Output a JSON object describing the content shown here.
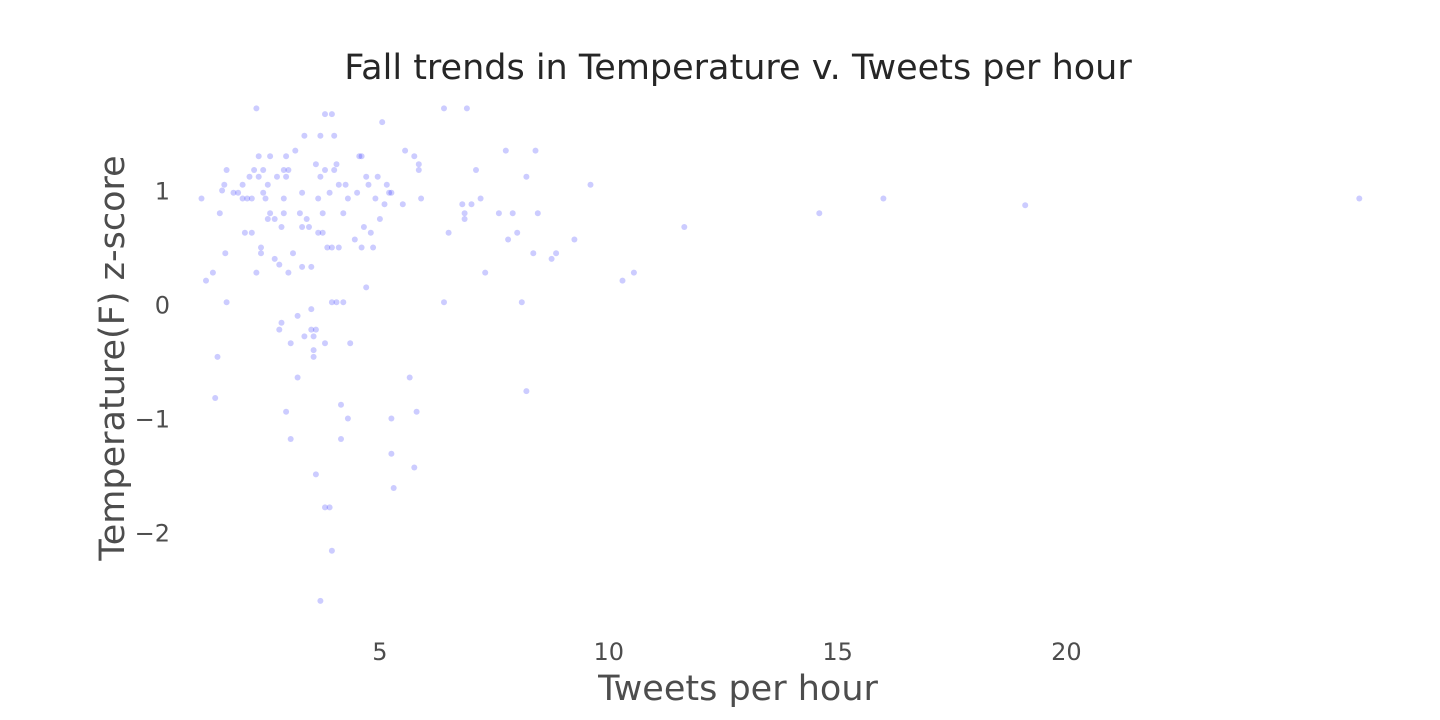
{
  "chart_data": {
    "type": "scatter",
    "title": "Fall trends in Temperature v. Tweets per hour",
    "xlabel": "Tweets per hour",
    "ylabel": "Temperature(F) z-score",
    "xlim": [
      0.5,
      26
    ],
    "ylim": [
      -2.75,
      1.75
    ],
    "xticks": [
      5,
      10,
      15,
      20
    ],
    "yticks": [
      -2,
      -1,
      0,
      1
    ],
    "xtick_labels": [
      "5",
      "10",
      "15",
      "20"
    ],
    "ytick_labels": [
      "−2",
      "−1",
      "0",
      "1"
    ],
    "grid": false,
    "marker_color": "#0000ff",
    "marker_opacity": 0.2,
    "points": [
      {
        "x": 1.1,
        "y": 0.93
      },
      {
        "x": 1.2,
        "y": 0.21
      },
      {
        "x": 1.35,
        "y": 0.28
      },
      {
        "x": 1.4,
        "y": -0.82
      },
      {
        "x": 1.45,
        "y": -0.46
      },
      {
        "x": 1.5,
        "y": 0.8
      },
      {
        "x": 1.55,
        "y": 1.0
      },
      {
        "x": 1.6,
        "y": 1.05
      },
      {
        "x": 1.62,
        "y": 0.45
      },
      {
        "x": 1.65,
        "y": 1.18
      },
      {
        "x": 1.65,
        "y": 0.02
      },
      {
        "x": 1.8,
        "y": 0.98
      },
      {
        "x": 1.9,
        "y": 0.98
      },
      {
        "x": 2.0,
        "y": 0.93
      },
      {
        "x": 2.0,
        "y": 1.05
      },
      {
        "x": 2.05,
        "y": 0.63
      },
      {
        "x": 2.1,
        "y": 0.93
      },
      {
        "x": 2.15,
        "y": 1.12
      },
      {
        "x": 2.2,
        "y": 0.93
      },
      {
        "x": 2.2,
        "y": 0.63
      },
      {
        "x": 2.25,
        "y": 1.18
      },
      {
        "x": 2.3,
        "y": 1.72
      },
      {
        "x": 2.3,
        "y": 0.28
      },
      {
        "x": 2.35,
        "y": 1.12
      },
      {
        "x": 2.35,
        "y": 1.3
      },
      {
        "x": 2.4,
        "y": 0.5
      },
      {
        "x": 2.4,
        "y": 0.45
      },
      {
        "x": 2.45,
        "y": 0.98
      },
      {
        "x": 2.45,
        "y": 1.18
      },
      {
        "x": 2.5,
        "y": 0.93
      },
      {
        "x": 2.55,
        "y": 1.05
      },
      {
        "x": 2.55,
        "y": 0.75
      },
      {
        "x": 2.6,
        "y": 1.3
      },
      {
        "x": 2.6,
        "y": 0.8
      },
      {
        "x": 2.7,
        "y": 0.75
      },
      {
        "x": 2.7,
        "y": 0.4
      },
      {
        "x": 2.75,
        "y": 1.12
      },
      {
        "x": 2.8,
        "y": -0.22
      },
      {
        "x": 2.8,
        "y": 0.35
      },
      {
        "x": 2.85,
        "y": -0.16
      },
      {
        "x": 2.85,
        "y": 0.68
      },
      {
        "x": 2.9,
        "y": 1.18
      },
      {
        "x": 2.9,
        "y": 0.93
      },
      {
        "x": 2.9,
        "y": 0.8
      },
      {
        "x": 2.95,
        "y": 1.3
      },
      {
        "x": 2.95,
        "y": 1.12
      },
      {
        "x": 2.95,
        "y": -0.94
      },
      {
        "x": 3.0,
        "y": 0.28
      },
      {
        "x": 3.0,
        "y": 1.18
      },
      {
        "x": 3.05,
        "y": -0.34
      },
      {
        "x": 3.05,
        "y": -1.18
      },
      {
        "x": 3.1,
        "y": 0.45
      },
      {
        "x": 3.15,
        "y": 1.35
      },
      {
        "x": 3.2,
        "y": -0.1
      },
      {
        "x": 3.2,
        "y": -0.64
      },
      {
        "x": 3.25,
        "y": 0.8
      },
      {
        "x": 3.3,
        "y": 0.98
      },
      {
        "x": 3.3,
        "y": 0.68
      },
      {
        "x": 3.3,
        "y": 0.33
      },
      {
        "x": 3.35,
        "y": -0.28
      },
      {
        "x": 3.35,
        "y": 1.48
      },
      {
        "x": 3.4,
        "y": 0.75
      },
      {
        "x": 3.45,
        "y": 0.68
      },
      {
        "x": 3.5,
        "y": 0.33
      },
      {
        "x": 3.5,
        "y": -0.04
      },
      {
        "x": 3.5,
        "y": -0.22
      },
      {
        "x": 3.55,
        "y": -0.28
      },
      {
        "x": 3.55,
        "y": -0.4
      },
      {
        "x": 3.55,
        "y": -0.46
      },
      {
        "x": 3.6,
        "y": -0.22
      },
      {
        "x": 3.6,
        "y": -1.49
      },
      {
        "x": 3.6,
        "y": 1.23
      },
      {
        "x": 3.65,
        "y": 0.93
      },
      {
        "x": 3.65,
        "y": 0.63
      },
      {
        "x": 3.7,
        "y": 1.12
      },
      {
        "x": 3.7,
        "y": 1.48
      },
      {
        "x": 3.7,
        "y": -2.6
      },
      {
        "x": 3.75,
        "y": 0.63
      },
      {
        "x": 3.75,
        "y": 0.8
      },
      {
        "x": 3.8,
        "y": 1.67
      },
      {
        "x": 3.8,
        "y": 1.18
      },
      {
        "x": 3.8,
        "y": -0.34
      },
      {
        "x": 3.8,
        "y": -1.78
      },
      {
        "x": 3.85,
        "y": 0.5
      },
      {
        "x": 3.9,
        "y": 0.98
      },
      {
        "x": 3.9,
        "y": -1.78
      },
      {
        "x": 3.95,
        "y": 1.67
      },
      {
        "x": 3.95,
        "y": 0.5
      },
      {
        "x": 3.95,
        "y": 0.02
      },
      {
        "x": 3.95,
        "y": -2.16
      },
      {
        "x": 4.0,
        "y": 1.48
      },
      {
        "x": 4.0,
        "y": 1.18
      },
      {
        "x": 4.05,
        "y": 1.23
      },
      {
        "x": 4.05,
        "y": 0.02
      },
      {
        "x": 4.1,
        "y": 1.05
      },
      {
        "x": 4.1,
        "y": 0.5
      },
      {
        "x": 4.15,
        "y": -0.88
      },
      {
        "x": 4.15,
        "y": -1.18
      },
      {
        "x": 4.2,
        "y": 0.02
      },
      {
        "x": 4.2,
        "y": 0.8
      },
      {
        "x": 4.25,
        "y": 1.05
      },
      {
        "x": 4.3,
        "y": 0.93
      },
      {
        "x": 4.3,
        "y": -1.0
      },
      {
        "x": 4.35,
        "y": -0.34
      },
      {
        "x": 4.45,
        "y": 0.57
      },
      {
        "x": 4.5,
        "y": 0.98
      },
      {
        "x": 4.55,
        "y": 1.3
      },
      {
        "x": 4.6,
        "y": 1.3
      },
      {
        "x": 4.6,
        "y": 0.5
      },
      {
        "x": 4.65,
        "y": 0.68
      },
      {
        "x": 4.7,
        "y": 1.12
      },
      {
        "x": 4.7,
        "y": 0.15
      },
      {
        "x": 4.75,
        "y": 1.05
      },
      {
        "x": 4.8,
        "y": 0.63
      },
      {
        "x": 4.85,
        "y": 0.5
      },
      {
        "x": 4.9,
        "y": 0.93
      },
      {
        "x": 4.95,
        "y": 1.12
      },
      {
        "x": 5.0,
        "y": 0.75
      },
      {
        "x": 5.05,
        "y": 1.6
      },
      {
        "x": 5.1,
        "y": 0.88
      },
      {
        "x": 5.15,
        "y": 1.05
      },
      {
        "x": 5.2,
        "y": 0.98
      },
      {
        "x": 5.25,
        "y": 0.98
      },
      {
        "x": 5.25,
        "y": -1.0
      },
      {
        "x": 5.25,
        "y": -1.31
      },
      {
        "x": 5.3,
        "y": -1.61
      },
      {
        "x": 5.5,
        "y": 0.88
      },
      {
        "x": 5.55,
        "y": 1.35
      },
      {
        "x": 5.65,
        "y": -0.64
      },
      {
        "x": 5.75,
        "y": -1.43
      },
      {
        "x": 5.8,
        "y": -0.94
      },
      {
        "x": 5.85,
        "y": 1.18
      },
      {
        "x": 5.85,
        "y": 1.23
      },
      {
        "x": 5.75,
        "y": 1.3
      },
      {
        "x": 5.9,
        "y": 0.93
      },
      {
        "x": 6.4,
        "y": 1.72
      },
      {
        "x": 6.4,
        "y": 0.02
      },
      {
        "x": 6.5,
        "y": 0.63
      },
      {
        "x": 6.8,
        "y": 0.88
      },
      {
        "x": 6.85,
        "y": 0.8
      },
      {
        "x": 6.85,
        "y": 0.75
      },
      {
        "x": 6.9,
        "y": 1.72
      },
      {
        "x": 7.0,
        "y": 0.88
      },
      {
        "x": 7.1,
        "y": 1.18
      },
      {
        "x": 7.2,
        "y": 0.93
      },
      {
        "x": 7.3,
        "y": 0.28
      },
      {
        "x": 7.6,
        "y": 0.8
      },
      {
        "x": 7.75,
        "y": 1.35
      },
      {
        "x": 7.8,
        "y": 0.57
      },
      {
        "x": 7.9,
        "y": 0.8
      },
      {
        "x": 8.0,
        "y": 0.63
      },
      {
        "x": 8.1,
        "y": 0.02
      },
      {
        "x": 8.2,
        "y": 1.12
      },
      {
        "x": 8.2,
        "y": -0.76
      },
      {
        "x": 8.35,
        "y": 0.45
      },
      {
        "x": 8.4,
        "y": 1.35
      },
      {
        "x": 8.45,
        "y": 0.8
      },
      {
        "x": 8.75,
        "y": 0.4
      },
      {
        "x": 8.85,
        "y": 0.45
      },
      {
        "x": 9.25,
        "y": 0.57
      },
      {
        "x": 9.6,
        "y": 1.05
      },
      {
        "x": 10.3,
        "y": 0.21
      },
      {
        "x": 10.55,
        "y": 0.28
      },
      {
        "x": 11.65,
        "y": 0.68
      },
      {
        "x": 14.6,
        "y": 0.8
      },
      {
        "x": 16.0,
        "y": 0.93
      },
      {
        "x": 19.1,
        "y": 0.87
      },
      {
        "x": 26.4,
        "y": 0.93
      }
    ]
  }
}
